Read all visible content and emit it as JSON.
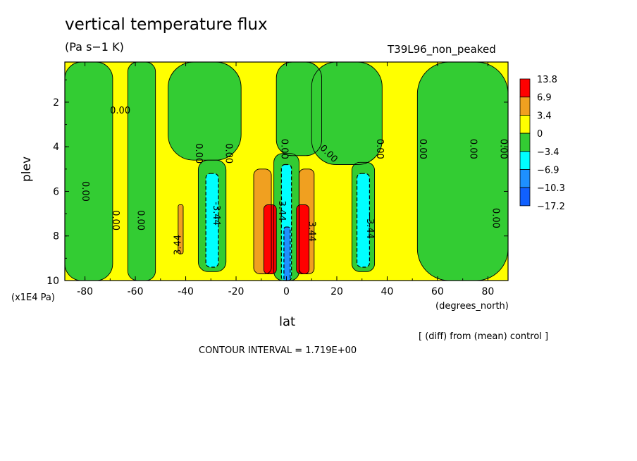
{
  "chart_data": {
    "type": "contour",
    "title": "vertical temperature flux",
    "units": "(Pa s−1 K)",
    "run_label": "T39L96_non_peaked",
    "xlabel": "lat",
    "x_units": "(degrees_north)",
    "ylabel": "plev",
    "y_units": "(x1E4 Pa)",
    "x_ticks": [
      -80,
      -60,
      -40,
      -20,
      0,
      20,
      40,
      60,
      80
    ],
    "y_ticks": [
      2,
      4,
      6,
      8,
      10
    ],
    "xlim": [
      -88,
      88
    ],
    "ylim": [
      0.2,
      10
    ],
    "y_inverted": true,
    "note": "[ (diff) from (mean) control ]",
    "contour_interval_text": "CONTOUR INTERVAL = 1.719E+00",
    "contour_labels": [
      "0.00",
      "-3.44",
      "3.44"
    ],
    "legend": {
      "levels": [
        "13.8",
        "6.9",
        "3.4",
        "0",
        "−3.4",
        "−6.9",
        "−10.3",
        "−17.2"
      ],
      "colors": [
        "#ff0000",
        "#f0a020",
        "#ffff00",
        "#33cc33",
        "#00ffff",
        "#1e90ff",
        "#1060ff"
      ]
    },
    "colors": {
      "positive_low": "#ffff00",
      "positive_mid": "#f0a020",
      "positive_high": "#ff0000",
      "negative_low": "#33cc33",
      "negative_mid": "#00ffff",
      "negative_high": "#1e90ff",
      "negative_max": "#1060ff"
    },
    "regions": [
      {
        "sign": "neg",
        "level": 1,
        "lat_range": [
          -88,
          -69
        ],
        "plev_range": [
          0.2,
          10
        ]
      },
      {
        "sign": "neg",
        "level": 1,
        "lat_range": [
          -63,
          -52
        ],
        "plev_range": [
          0.2,
          10
        ]
      },
      {
        "sign": "neg",
        "level": 1,
        "lat_range": [
          -47,
          -18
        ],
        "plev_range": [
          0.2,
          4.6
        ]
      },
      {
        "sign": "neg",
        "level": 1,
        "lat_range": [
          -4,
          14
        ],
        "plev_range": [
          0.2,
          4.4
        ]
      },
      {
        "sign": "neg",
        "level": 1,
        "lat_range": [
          10,
          38
        ],
        "plev_range": [
          0.2,
          4.8
        ]
      },
      {
        "sign": "neg",
        "level": 1,
        "lat_range": [
          52,
          88
        ],
        "plev_range": [
          0.2,
          10
        ]
      },
      {
        "sign": "neg",
        "level": 1,
        "lat_range": [
          -35,
          -24
        ],
        "plev_range": [
          4.6,
          9.6
        ]
      },
      {
        "sign": "neg",
        "level": 2,
        "lat_range": [
          -32,
          -27
        ],
        "plev_range": [
          5.2,
          9.4
        ]
      },
      {
        "sign": "neg",
        "level": 1,
        "lat_range": [
          -5,
          5
        ],
        "plev_range": [
          4.3,
          10
        ]
      },
      {
        "sign": "neg",
        "level": 2,
        "lat_range": [
          -2,
          2
        ],
        "plev_range": [
          4.8,
          10
        ]
      },
      {
        "sign": "neg",
        "level": 3,
        "lat_range": [
          -1,
          1.5
        ],
        "plev_range": [
          7.6,
          10
        ]
      },
      {
        "sign": "neg",
        "level": 1,
        "lat_range": [
          26,
          35
        ],
        "plev_range": [
          4.7,
          9.6
        ]
      },
      {
        "sign": "neg",
        "level": 2,
        "lat_range": [
          28,
          33
        ],
        "plev_range": [
          5.2,
          9.4
        ]
      },
      {
        "sign": "pos",
        "level": 2,
        "lat_range": [
          -43,
          -41
        ],
        "plev_range": [
          6.6,
          8.8
        ]
      },
      {
        "sign": "pos",
        "level": 2,
        "lat_range": [
          -13,
          -6
        ],
        "plev_range": [
          5.0,
          9.7
        ]
      },
      {
        "sign": "pos",
        "level": 3,
        "lat_range": [
          -9,
          -4
        ],
        "plev_range": [
          6.6,
          9.7
        ]
      },
      {
        "sign": "pos",
        "level": 2,
        "lat_range": [
          5,
          11
        ],
        "plev_range": [
          5.0,
          9.7
        ]
      },
      {
        "sign": "pos",
        "level": 3,
        "lat_range": [
          4,
          9
        ],
        "plev_range": [
          6.6,
          9.7
        ]
      }
    ]
  }
}
